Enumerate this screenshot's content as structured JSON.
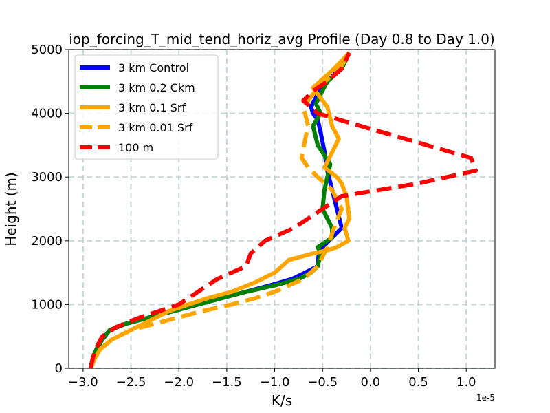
{
  "chart_data": {
    "type": "line",
    "title": "iop_forcing_T_mid_tend_horiz_avg Profile (Day 0.8 to Day 1.0)",
    "xlabel": "K/s",
    "ylabel": "Height (m)",
    "x_offset_label": "1e-5",
    "x_scale": 1e-05,
    "xlim": [
      -3.15,
      1.3
    ],
    "ylim": [
      0,
      5000
    ],
    "xticks": [
      -3.0,
      -2.5,
      -2.0,
      -1.5,
      -1.0,
      -0.5,
      0.0,
      0.5,
      1.0
    ],
    "xtick_labels": [
      "−3.0",
      "−2.5",
      "−2.0",
      "−1.5",
      "−1.0",
      "−0.5",
      "0.0",
      "0.5",
      "1.0"
    ],
    "yticks": [
      0,
      1000,
      2000,
      3000,
      4000,
      5000
    ],
    "ytick_labels": [
      "0",
      "1000",
      "2000",
      "3000",
      "4000",
      "5000"
    ],
    "grid": true,
    "legend_position": "upper-left",
    "series": [
      {
        "name": "3 km Control",
        "color": "#0000ff",
        "dash": "solid",
        "x": [
          -2.92,
          -2.9,
          -2.86,
          -2.8,
          -2.72,
          -2.55,
          -2.3,
          -2.05,
          -1.8,
          -1.55,
          -1.3,
          -1.05,
          -0.82,
          -0.68,
          -0.55,
          -0.54,
          -0.5,
          -0.4,
          -0.3,
          -0.35,
          -0.4,
          -0.45,
          -0.48,
          -0.52,
          -0.55,
          -0.6,
          -0.62,
          -0.55,
          -0.45,
          -0.35,
          -0.22
        ],
        "y": [
          0,
          150,
          300,
          450,
          600,
          700,
          800,
          900,
          1000,
          1100,
          1200,
          1300,
          1400,
          1500,
          1600,
          1800,
          1900,
          2050,
          2200,
          2500,
          2800,
          3100,
          3400,
          3700,
          3900,
          4000,
          4100,
          4300,
          4500,
          4650,
          4950
        ]
      },
      {
        "name": "3 km 0.2 Ckm",
        "color": "#008000",
        "dash": "solid",
        "x": [
          -2.92,
          -2.9,
          -2.86,
          -2.8,
          -2.72,
          -2.55,
          -2.3,
          -2.05,
          -1.8,
          -1.55,
          -1.3,
          -1.0,
          -0.75,
          -0.62,
          -0.55,
          -0.52,
          -0.55,
          -0.4,
          -0.4,
          -0.5,
          -0.48,
          -0.42,
          -0.55,
          -0.6,
          -0.52,
          -0.57,
          -0.52,
          -0.45,
          -0.3,
          -0.22
        ],
        "y": [
          0,
          150,
          300,
          450,
          600,
          700,
          800,
          900,
          1000,
          1100,
          1200,
          1300,
          1400,
          1500,
          1600,
          1800,
          1900,
          2050,
          2200,
          2500,
          2800,
          3200,
          3500,
          3800,
          4000,
          4150,
          4300,
          4500,
          4700,
          4950
        ]
      },
      {
        "name": "3 km 0.1 Srf",
        "color": "#ffa500",
        "dash": "solid",
        "x": [
          -2.92,
          -2.88,
          -2.82,
          -2.7,
          -2.5,
          -2.3,
          -2.1,
          -1.9,
          -1.7,
          -1.45,
          -1.2,
          -1.0,
          -0.85,
          -0.6,
          -0.45,
          -0.35,
          -0.23,
          -0.27,
          -0.22,
          -0.25,
          -0.3,
          -0.35,
          -0.48,
          -0.33,
          -0.4,
          -0.45,
          -0.6,
          -0.38,
          -0.22
        ],
        "y": [
          0,
          150,
          300,
          450,
          600,
          750,
          900,
          1000,
          1100,
          1200,
          1350,
          1500,
          1700,
          1800,
          1850,
          1900,
          2000,
          2200,
          2350,
          2700,
          2900,
          3000,
          3150,
          3600,
          3800,
          4100,
          4400,
          4700,
          4950
        ]
      },
      {
        "name": "3 km 0.01 Srf",
        "color": "#ffa500",
        "dash": "dashed",
        "x": [
          -2.92,
          -2.88,
          -2.82,
          -2.7,
          -2.5,
          -2.25,
          -2.0,
          -1.75,
          -1.45,
          -1.2,
          -1.0,
          -0.85,
          -0.7,
          -0.55,
          -0.45,
          -0.38,
          -0.3,
          -0.4,
          -0.55,
          -0.65,
          -0.72,
          -0.68,
          -0.65,
          -0.7,
          -0.55,
          -0.4,
          -0.3,
          -0.22
        ],
        "y": [
          0,
          150,
          300,
          450,
          600,
          700,
          800,
          900,
          1000,
          1100,
          1200,
          1300,
          1400,
          1600,
          1900,
          2200,
          2500,
          2800,
          3000,
          3150,
          3300,
          3600,
          3800,
          4100,
          4400,
          4600,
          4750,
          4950
        ]
      },
      {
        "name": "100 m",
        "color": "#ff0000",
        "dash": "dashed",
        "x": [
          -2.92,
          -2.9,
          -2.87,
          -2.8,
          -2.65,
          -2.4,
          -2.0,
          -1.7,
          -1.6,
          -1.3,
          -1.25,
          -1.1,
          -0.8,
          -0.6,
          -0.5,
          -0.3,
          0.5,
          1.1,
          1.05,
          -0.1,
          -0.55,
          -0.7,
          -0.6,
          -0.45,
          -0.3,
          -0.22
        ],
        "y": [
          0,
          150,
          300,
          500,
          650,
          800,
          1000,
          1300,
          1400,
          1600,
          1800,
          2000,
          2200,
          2400,
          2500,
          2700,
          2900,
          3100,
          3300,
          3800,
          4000,
          4200,
          4350,
          4500,
          4700,
          4950
        ]
      }
    ]
  }
}
